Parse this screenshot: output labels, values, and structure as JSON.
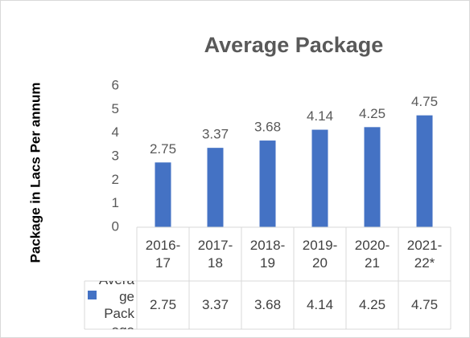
{
  "chart_data": {
    "type": "bar",
    "title": "Average Package",
    "y_axis_label": "Package in Lacs Per annum",
    "categories": [
      "2016-17",
      "2017-18",
      "2018-19",
      "2019-20",
      "2020-21",
      "2021-22*"
    ],
    "series": [
      {
        "name": "Average Package",
        "color": "#4472c4",
        "values": [
          2.75,
          3.37,
          3.68,
          4.14,
          4.25,
          4.75
        ]
      }
    ],
    "ylim": [
      0,
      6
    ],
    "yticks": [
      0,
      1,
      2,
      3,
      4,
      5,
      6
    ],
    "grid": false,
    "data_table": true
  }
}
